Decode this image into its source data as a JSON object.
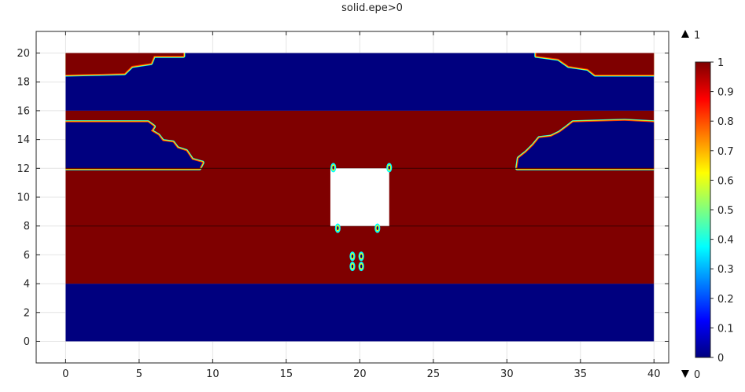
{
  "chart_data": {
    "type": "heatmap",
    "title": "solid.epe>0",
    "xlim": [
      -2,
      41
    ],
    "ylim": [
      -1.5,
      21.5
    ],
    "x_ticks": [
      0,
      5,
      10,
      15,
      20,
      25,
      30,
      35,
      40
    ],
    "y_ticks": [
      0,
      2,
      4,
      6,
      8,
      10,
      12,
      14,
      16,
      18,
      20
    ],
    "grid": true,
    "domain": {
      "x": [
        0,
        40
      ],
      "y": [
        0,
        20
      ]
    },
    "hole": {
      "x": [
        18,
        22
      ],
      "y": [
        8,
        12
      ]
    },
    "layers": [
      {
        "y": [
          0,
          4
        ],
        "value": 0
      },
      {
        "y": [
          4,
          8
        ],
        "value": 1
      },
      {
        "y": [
          8,
          12
        ],
        "value": 1
      },
      {
        "y": [
          12,
          16
        ],
        "value": 1
      },
      {
        "y": [
          16,
          20
        ],
        "value": 0
      }
    ],
    "regions": [
      {
        "value": 1,
        "points": [
          [
            0,
            20
          ],
          [
            8,
            20
          ],
          [
            8,
            19.8
          ],
          [
            6,
            19.8
          ],
          [
            5.8,
            19.3
          ],
          [
            4.5,
            19.1
          ],
          [
            4,
            18.6
          ],
          [
            0,
            18.5
          ]
        ]
      },
      {
        "value": 1,
        "points": [
          [
            40,
            20
          ],
          [
            32,
            20
          ],
          [
            32,
            19.8
          ],
          [
            33.5,
            19.6
          ],
          [
            34.2,
            19.1
          ],
          [
            35.5,
            18.9
          ],
          [
            36,
            18.5
          ],
          [
            40,
            18.5
          ]
        ]
      },
      {
        "value": 0,
        "points": [
          [
            0,
            15.2
          ],
          [
            2,
            15.2
          ],
          [
            5.6,
            15.2
          ],
          [
            6,
            14.9
          ],
          [
            5.8,
            14.6
          ],
          [
            6.3,
            14.3
          ],
          [
            6.6,
            13.9
          ],
          [
            7.3,
            13.8
          ],
          [
            7.6,
            13.4
          ],
          [
            8.2,
            13.2
          ],
          [
            8.6,
            12.6
          ],
          [
            9.3,
            12.4
          ],
          [
            9.1,
            12
          ],
          [
            0,
            12
          ]
        ]
      },
      {
        "value": 0,
        "points": [
          [
            40,
            15.2
          ],
          [
            38,
            15.3
          ],
          [
            34.5,
            15.2
          ],
          [
            34,
            14.8
          ],
          [
            33.6,
            14.5
          ],
          [
            33,
            14.2
          ],
          [
            32.2,
            14.1
          ],
          [
            31.8,
            13.6
          ],
          [
            31.3,
            13.1
          ],
          [
            30.8,
            12.7
          ],
          [
            30.7,
            12
          ],
          [
            40,
            12
          ]
        ]
      }
    ],
    "spots": [
      {
        "x": 18.2,
        "y": 12.05
      },
      {
        "x": 22,
        "y": 12.05
      },
      {
        "x": 18.5,
        "y": 7.85
      },
      {
        "x": 21.2,
        "y": 7.85
      },
      {
        "x": 19.5,
        "y": 5.2
      },
      {
        "x": 20.1,
        "y": 5.2
      },
      {
        "x": 19.5,
        "y": 5.9
      },
      {
        "x": 20.1,
        "y": 5.9
      }
    ],
    "colorbar": {
      "ticks": [
        0,
        0.1,
        0.2,
        0.3,
        0.4,
        0.5,
        0.6,
        0.7,
        0.8,
        0.9,
        1
      ],
      "max_label": "1",
      "min_label": "0",
      "colors": [
        "#00007f",
        "#0000ff",
        "#007fff",
        "#00ffff",
        "#7fff7f",
        "#ffff00",
        "#ff7f00",
        "#ff0000",
        "#7f0000"
      ]
    },
    "colors": {
      "low": "#00007f",
      "high": "#7f0000",
      "frame": "#222222",
      "grid": "#e4e4e4"
    }
  }
}
